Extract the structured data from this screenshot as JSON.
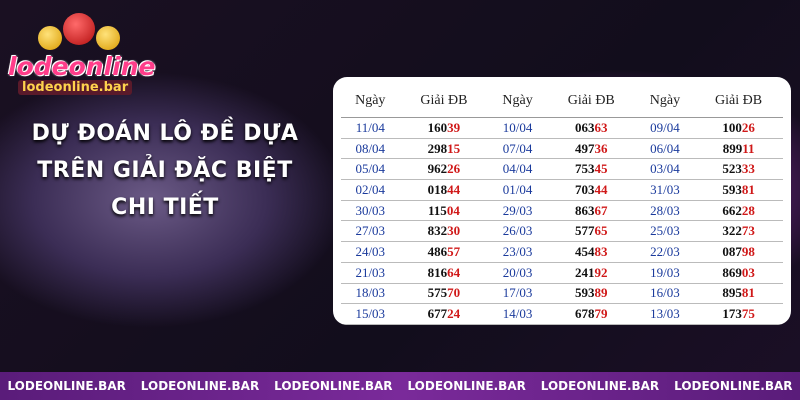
{
  "logo": {
    "name": "lodeonline",
    "url": "lodeonline.bar"
  },
  "title": {
    "lines": [
      "DỰ ĐOÁN LÔ ĐỀ DỰA",
      "TRÊN GIẢI ĐẶC BIỆT",
      "CHI TIẾT"
    ]
  },
  "table": {
    "headers": [
      "Ngày",
      "Giải ĐB",
      "Ngày",
      "Giải ĐB",
      "Ngày",
      "Giải ĐB"
    ],
    "rows": [
      [
        "11/04",
        {
          "main": "160",
          "tail": "39"
        },
        "10/04",
        {
          "main": "063",
          "tail": "63"
        },
        "09/04",
        {
          "main": "100",
          "tail": "26"
        }
      ],
      [
        "08/04",
        {
          "main": "298",
          "tail": "15"
        },
        "07/04",
        {
          "main": "497",
          "tail": "36"
        },
        "06/04",
        {
          "main": "899",
          "tail": "11"
        }
      ],
      [
        "05/04",
        {
          "main": "962",
          "tail": "26"
        },
        "04/04",
        {
          "main": "753",
          "tail": "45"
        },
        "03/04",
        {
          "main": "523",
          "tail": "33"
        }
      ],
      [
        "02/04",
        {
          "main": "018",
          "tail": "44"
        },
        "01/04",
        {
          "main": "703",
          "tail": "44"
        },
        "31/03",
        {
          "main": "593",
          "tail": "81"
        }
      ],
      [
        "30/03",
        {
          "main": "115",
          "tail": "04"
        },
        "29/03",
        {
          "main": "863",
          "tail": "67"
        },
        "28/03",
        {
          "main": "662",
          "tail": "28"
        }
      ],
      [
        "27/03",
        {
          "main": "832",
          "tail": "30"
        },
        "26/03",
        {
          "main": "577",
          "tail": "65"
        },
        "25/03",
        {
          "main": "322",
          "tail": "73"
        }
      ],
      [
        "24/03",
        {
          "main": "486",
          "tail": "57"
        },
        "23/03",
        {
          "main": "454",
          "tail": "83"
        },
        "22/03",
        {
          "main": "087",
          "tail": "98"
        }
      ],
      [
        "21/03",
        {
          "main": "816",
          "tail": "64"
        },
        "20/03",
        {
          "main": "241",
          "tail": "92"
        },
        "19/03",
        {
          "main": "869",
          "tail": "03"
        }
      ],
      [
        "18/03",
        {
          "main": "575",
          "tail": "70"
        },
        "17/03",
        {
          "main": "593",
          "tail": "89"
        },
        "16/03",
        {
          "main": "895",
          "tail": "81"
        }
      ],
      [
        "15/03",
        {
          "main": "677",
          "tail": "24"
        },
        "14/03",
        {
          "main": "678",
          "tail": "79"
        },
        "13/03",
        {
          "main": "173",
          "tail": "75"
        }
      ]
    ]
  },
  "footer": {
    "links": [
      "LODEONLINE.BAR",
      "LODEONLINE.BAR",
      "LODEONLINE.BAR",
      "LODEONLINE.BAR",
      "LODEONLINE.BAR",
      "LODEONLINE.BAR"
    ]
  }
}
